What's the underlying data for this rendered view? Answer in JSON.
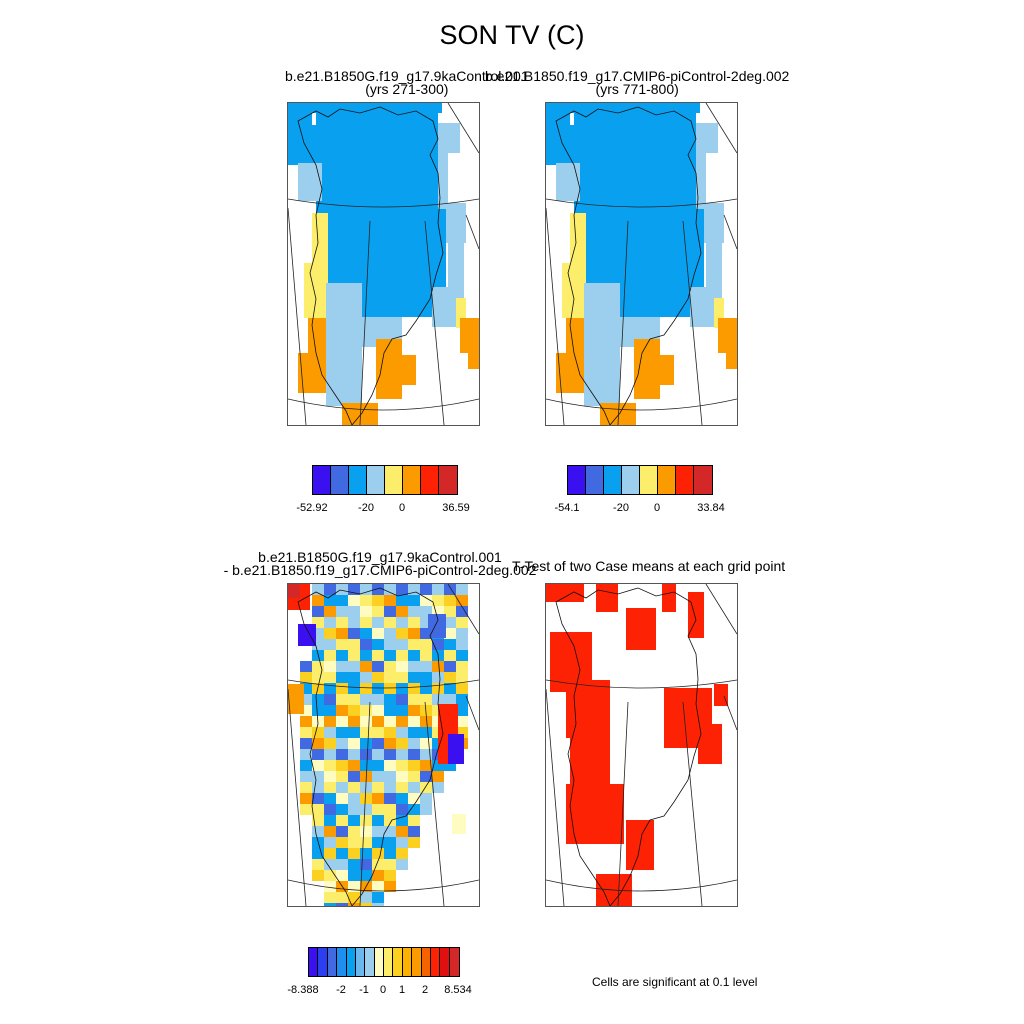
{
  "figure": {
    "title": "SON TV (C)"
  },
  "panels": [
    {
      "line1": "b.e21.B1850G.f19_g17.9kaControl.001",
      "line2": "(yrs 271-300)"
    },
    {
      "line1": "b.e21.B1850.f19_g17.CMIP6-piControl-2deg.002",
      "line2": "(yrs 771-800)"
    },
    {
      "line1": "b.e21.B1850G.f19_g17.9kaControl.001",
      "line2": "- b.e21.B1850.f19_g17.CMIP6-piControl-2deg.002"
    },
    {
      "line1": "T-Test of two Case means at each grid point",
      "line2": ""
    }
  ],
  "colorbars": [
    {
      "colors": [
        "#3a10f0",
        "#4169e1",
        "#0aa0f0",
        "#9ccfee",
        "#fcee6b",
        "#fc9b00",
        "#fd2204",
        "#d42828"
      ],
      "labels": [
        "-52.92",
        "-20",
        "0",
        "36.59"
      ]
    },
    {
      "colors": [
        "#3a10f0",
        "#4169e1",
        "#0aa0f0",
        "#9ccfee",
        "#fcee6b",
        "#fc9b00",
        "#fd2204",
        "#d42828"
      ],
      "labels": [
        "-54.1",
        "-20",
        "0",
        "33.84"
      ]
    },
    {
      "colors": [
        "#3a10f0",
        "#2b3ff0",
        "#4169e1",
        "#1e8fee",
        "#0aa0f0",
        "#6ab8ee",
        "#9ccfee",
        "#fefcc0",
        "#fcee6b",
        "#fcd020",
        "#fcb000",
        "#fc9b00",
        "#f56300",
        "#fd2204",
        "#e01010",
        "#d42828"
      ],
      "labels": [
        "-8.388",
        "-2",
        "-1",
        "0",
        "1",
        "2",
        "8.534"
      ]
    }
  ],
  "significance_note": "Cells are significant at 0.1 level"
}
